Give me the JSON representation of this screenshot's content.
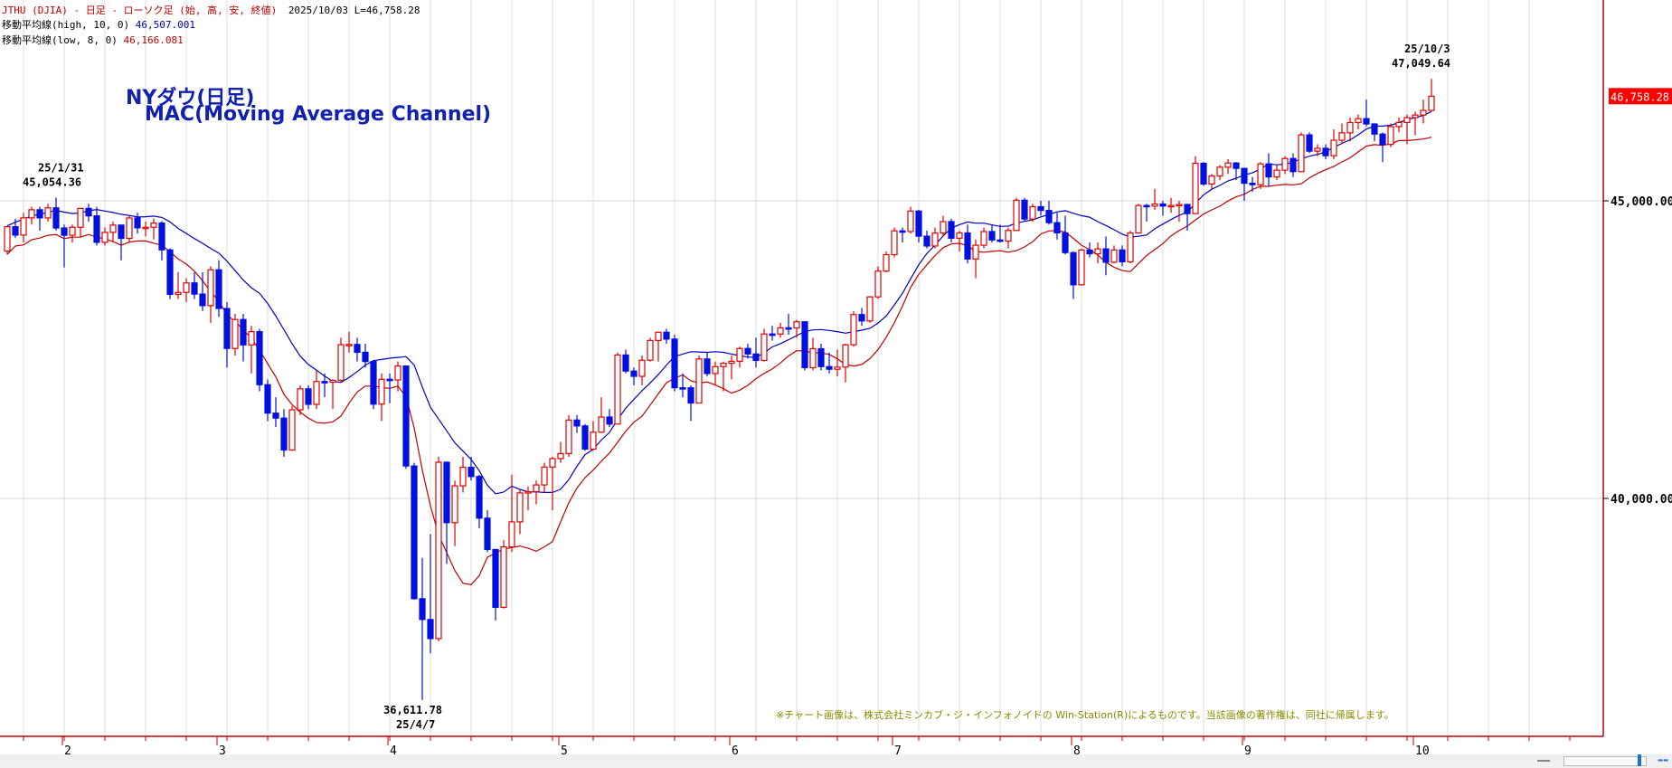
{
  "header": {
    "symbol_line": "JTHU (DJIA) - 日足 - ローソク足 (始, 高, 安, 終値)",
    "date_line": "2025/10/03 L=46,758.28",
    "ma_high_label": "移動平均線(high, 10, 0)",
    "ma_high_value": "46,507.001",
    "ma_low_label": "移動平均線(low, 8, 0)",
    "ma_low_value": "46,166.081"
  },
  "titles": {
    "line1": "NYダウ(日足)",
    "line2": "MAC(Moving Average Channel)"
  },
  "annotations": {
    "high_jan_date": "25/1/31",
    "high_jan_value": "45,054.36",
    "low_apr_value": "36,611.78",
    "low_apr_date": "25/4/7",
    "high_oct_date": "25/10/3",
    "high_oct_value": "47,049.64"
  },
  "price_axis": {
    "labels": [
      "45,000.00",
      "40,000.00"
    ],
    "current_price": "46,758.28"
  },
  "copyright": "※チャート画像は、株式会社ミンカブ・ジ・インフォノイドの Win-Station(R)によるものです。当該画像の著作権は、同社に帰属します。",
  "colors": {
    "up": "#e00000",
    "down": "#0010e0",
    "ma_high": "#0000c0",
    "ma_low": "#c00000",
    "axis": "#c00000",
    "current_bg": "#ff0000"
  },
  "chart_data": {
    "type": "candlestick",
    "ylim": [
      35000,
      48000
    ],
    "y_ticks": [
      45000,
      40000
    ],
    "grid": true,
    "ma": [
      {
        "source": "high",
        "period": 10,
        "color": "blue"
      },
      {
        "source": "low",
        "period": 8,
        "color": "red"
      }
    ],
    "x_labels": [
      {
        "label": "2",
        "index": 7
      },
      {
        "label": "3",
        "index": 26
      },
      {
        "label": "4",
        "index": 47
      },
      {
        "label": "5",
        "index": 68
      },
      {
        "label": "6",
        "index": 89
      },
      {
        "label": "7",
        "index": 109
      },
      {
        "label": "8",
        "index": 131
      },
      {
        "label": "9",
        "index": 152
      },
      {
        "label": "10",
        "index": 173
      }
    ],
    "ohlc": [
      [
        44156,
        44580,
        44100,
        44565
      ],
      [
        44565,
        44700,
        44380,
        44424
      ],
      [
        44424,
        44800,
        44300,
        44713
      ],
      [
        44713,
        44900,
        44600,
        44850
      ],
      [
        44850,
        44900,
        44500,
        44713
      ],
      [
        44713,
        44950,
        44650,
        44882
      ],
      [
        44882,
        45054,
        44500,
        44544
      ],
      [
        44544,
        44600,
        43880,
        44421
      ],
      [
        44421,
        44600,
        44300,
        44556
      ],
      [
        44556,
        44880,
        44400,
        44873
      ],
      [
        44873,
        44950,
        44650,
        44747
      ],
      [
        44747,
        44900,
        44250,
        44303
      ],
      [
        44303,
        44550,
        44250,
        44470
      ],
      [
        44470,
        44650,
        44300,
        44593
      ],
      [
        44593,
        44600,
        44000,
        44368
      ],
      [
        44368,
        44750,
        44300,
        44711
      ],
      [
        44711,
        44800,
        44450,
        44546
      ],
      [
        44546,
        44650,
        44400,
        44556
      ],
      [
        44556,
        44700,
        44350,
        44627
      ],
      [
        44627,
        44660,
        44000,
        44176
      ],
      [
        44176,
        44200,
        43350,
        43428
      ],
      [
        43428,
        43800,
        43350,
        43461
      ],
      [
        43461,
        43700,
        43300,
        43621
      ],
      [
        43621,
        43800,
        43350,
        43433
      ],
      [
        43433,
        43800,
        43150,
        43239
      ],
      [
        43239,
        43900,
        42950,
        43841
      ],
      [
        43841,
        44000,
        43050,
        43191
      ],
      [
        43191,
        43300,
        42200,
        42520
      ],
      [
        42520,
        43100,
        42400,
        43006
      ],
      [
        43006,
        43100,
        42300,
        42579
      ],
      [
        42579,
        42900,
        42100,
        42802
      ],
      [
        42802,
        42850,
        41800,
        41911
      ],
      [
        41911,
        42000,
        41300,
        41433
      ],
      [
        41433,
        41700,
        41200,
        41350
      ],
      [
        41350,
        41500,
        40700,
        40813
      ],
      [
        40813,
        41550,
        40800,
        41488
      ],
      [
        41488,
        41900,
        41400,
        41841
      ],
      [
        41841,
        41900,
        41500,
        41581
      ],
      [
        41581,
        42150,
        41500,
        41964
      ],
      [
        41964,
        42100,
        41700,
        41953
      ],
      [
        41953,
        42000,
        41500,
        41985
      ],
      [
        41985,
        42700,
        41950,
        42583
      ],
      [
        42583,
        42800,
        42450,
        42587
      ],
      [
        42587,
        42700,
        42300,
        42455
      ],
      [
        42455,
        42600,
        42200,
        42300
      ],
      [
        42300,
        42300,
        41500,
        41584
      ],
      [
        41584,
        42100,
        41300,
        42002
      ],
      [
        42002,
        42100,
        41600,
        41989
      ],
      [
        41989,
        42300,
        41800,
        42225
      ],
      [
        42225,
        42225,
        40500,
        40545
      ],
      [
        40545,
        40600,
        38300,
        38315
      ],
      [
        38315,
        39000,
        36612,
        37966
      ],
      [
        37966,
        39400,
        37400,
        37645
      ],
      [
        37645,
        40700,
        37600,
        40608
      ],
      [
        40608,
        40620,
        38900,
        39593
      ],
      [
        39593,
        40300,
        39200,
        40212
      ],
      [
        40212,
        40700,
        40100,
        40524
      ],
      [
        40524,
        40700,
        40300,
        40368
      ],
      [
        40368,
        40400,
        39500,
        39669
      ],
      [
        39669,
        39800,
        39100,
        39142
      ],
      [
        39142,
        39150,
        37950,
        38170
      ],
      [
        38170,
        39300,
        38150,
        39186
      ],
      [
        39186,
        40400,
        39100,
        39606
      ],
      [
        39606,
        40150,
        39400,
        40093
      ],
      [
        40093,
        40200,
        39800,
        40113
      ],
      [
        40113,
        40300,
        39900,
        40227
      ],
      [
        40227,
        40600,
        40100,
        40527
      ],
      [
        40527,
        40700,
        39800,
        40669
      ],
      [
        40669,
        40950,
        40600,
        40753
      ],
      [
        40753,
        41400,
        40700,
        41317
      ],
      [
        41317,
        41400,
        41100,
        41218
      ],
      [
        41218,
        41250,
        40800,
        40829
      ],
      [
        40829,
        41300,
        40800,
        41113
      ],
      [
        41113,
        41700,
        41100,
        41368
      ],
      [
        41368,
        41500,
        41200,
        41249
      ],
      [
        41249,
        42450,
        41249,
        42410
      ],
      [
        42410,
        42500,
        42100,
        42140
      ],
      [
        42140,
        42200,
        41900,
        42051
      ],
      [
        42051,
        42400,
        41900,
        42322
      ],
      [
        42322,
        42700,
        42300,
        42654
      ],
      [
        42654,
        42800,
        42300,
        42792
      ],
      [
        42792,
        42850,
        42600,
        42677
      ],
      [
        42677,
        42750,
        41800,
        41860
      ],
      [
        41860,
        42100,
        41700,
        41859
      ],
      [
        41859,
        41900,
        41300,
        41603
      ],
      [
        41603,
        42400,
        41600,
        42343
      ],
      [
        42343,
        42450,
        42050,
        42098
      ],
      [
        42098,
        42300,
        41900,
        42215
      ],
      [
        42215,
        42300,
        41800,
        42270
      ],
      [
        42270,
        42400,
        42000,
        42305
      ],
      [
        42305,
        42550,
        42200,
        42519
      ],
      [
        42519,
        42600,
        42350,
        42427
      ],
      [
        42427,
        42700,
        42200,
        42319
      ],
      [
        42319,
        42850,
        42300,
        42763
      ],
      [
        42763,
        42900,
        42650,
        42762
      ],
      [
        42762,
        42950,
        42700,
        42867
      ],
      [
        42867,
        43100,
        42750,
        42865
      ],
      [
        42865,
        43000,
        42700,
        42968
      ],
      [
        42968,
        42968,
        42150,
        42197
      ],
      [
        42197,
        42700,
        42150,
        42515
      ],
      [
        42515,
        42600,
        42150,
        42215
      ],
      [
        42215,
        42450,
        42100,
        42171
      ],
      [
        42171,
        42500,
        42050,
        42206
      ],
      [
        42206,
        42600,
        41950,
        42582
      ],
      [
        42582,
        43150,
        42550,
        43089
      ],
      [
        43089,
        43200,
        42900,
        42982
      ],
      [
        42982,
        43400,
        42950,
        43386
      ],
      [
        43386,
        43900,
        43350,
        43819
      ],
      [
        43819,
        44150,
        43800,
        44095
      ],
      [
        44095,
        44550,
        44050,
        44495
      ],
      [
        44495,
        44550,
        44300,
        44484
      ],
      [
        44484,
        44900,
        44450,
        44828
      ],
      [
        44828,
        44850,
        44300,
        44406
      ],
      [
        44406,
        44500,
        44200,
        44241
      ],
      [
        44241,
        44550,
        44200,
        44458
      ],
      [
        44458,
        44750,
        44400,
        44651
      ],
      [
        44651,
        44700,
        44300,
        44372
      ],
      [
        44372,
        44500,
        44150,
        44460
      ],
      [
        44460,
        44600,
        43950,
        44023
      ],
      [
        44023,
        44350,
        43700,
        44254
      ],
      [
        44254,
        44550,
        44200,
        44484
      ],
      [
        44484,
        44600,
        44300,
        44342
      ],
      [
        44342,
        44600,
        44300,
        44323
      ],
      [
        44323,
        44550,
        44200,
        44502
      ],
      [
        44502,
        45050,
        44500,
        45010
      ],
      [
        45010,
        45050,
        44650,
        44694
      ],
      [
        44694,
        44950,
        44650,
        44902
      ],
      [
        44902,
        45000,
        44750,
        44838
      ],
      [
        44838,
        45000,
        44600,
        44633
      ],
      [
        44633,
        44800,
        44350,
        44461
      ],
      [
        44461,
        44750,
        44100,
        44130
      ],
      [
        44130,
        44150,
        43350,
        43589
      ],
      [
        43589,
        44200,
        43580,
        44173
      ],
      [
        44173,
        44300,
        44050,
        44111
      ],
      [
        44111,
        44300,
        43950,
        44193
      ],
      [
        44193,
        44400,
        43750,
        43968
      ],
      [
        43968,
        44250,
        43950,
        44175
      ],
      [
        44175,
        44250,
        43900,
        43975
      ],
      [
        43975,
        44500,
        43950,
        44459
      ],
      [
        44459,
        44950,
        44450,
        44922
      ],
      [
        44922,
        44950,
        44650,
        44911
      ],
      [
        44911,
        45200,
        44850,
        44946
      ],
      [
        44946,
        45000,
        44750,
        44912
      ],
      [
        44912,
        45050,
        44800,
        44922
      ],
      [
        44922,
        45000,
        44650,
        44938
      ],
      [
        44938,
        44950,
        44500,
        44785
      ],
      [
        44785,
        45750,
        44780,
        45631
      ],
      [
        45631,
        45650,
        45250,
        45282
      ],
      [
        45282,
        45450,
        45200,
        45418
      ],
      [
        45418,
        45600,
        45350,
        45565
      ],
      [
        45565,
        45700,
        45450,
        45636
      ],
      [
        45636,
        45650,
        45350,
        45545
      ],
      [
        45545,
        45550,
        45000,
        45295
      ],
      [
        45295,
        45400,
        45150,
        45271
      ],
      [
        45271,
        45650,
        45200,
        45621
      ],
      [
        45621,
        45800,
        45250,
        45401
      ],
      [
        45401,
        45600,
        45350,
        45515
      ],
      [
        45515,
        45750,
        45450,
        45711
      ],
      [
        45711,
        45800,
        45400,
        45490
      ],
      [
        45490,
        46150,
        45480,
        46108
      ],
      [
        46108,
        46150,
        45800,
        45834
      ],
      [
        45834,
        45950,
        45750,
        45883
      ],
      [
        45883,
        45950,
        45700,
        45758
      ],
      [
        45758,
        46200,
        45700,
        46018
      ],
      [
        46018,
        46300,
        45950,
        46142
      ],
      [
        46142,
        46400,
        46000,
        46315
      ],
      [
        46315,
        46450,
        46200,
        46381
      ],
      [
        46381,
        46700,
        46250,
        46292
      ],
      [
        46292,
        46300,
        46000,
        46121
      ],
      [
        46121,
        46150,
        45650,
        45947
      ],
      [
        45947,
        46300,
        45900,
        46247
      ],
      [
        46247,
        46400,
        46150,
        46316
      ],
      [
        46316,
        46450,
        45950,
        46398
      ],
      [
        46398,
        46500,
        46100,
        46441
      ],
      [
        46441,
        46700,
        46300,
        46519
      ],
      [
        46519,
        47049,
        46500,
        46758
      ]
    ]
  }
}
